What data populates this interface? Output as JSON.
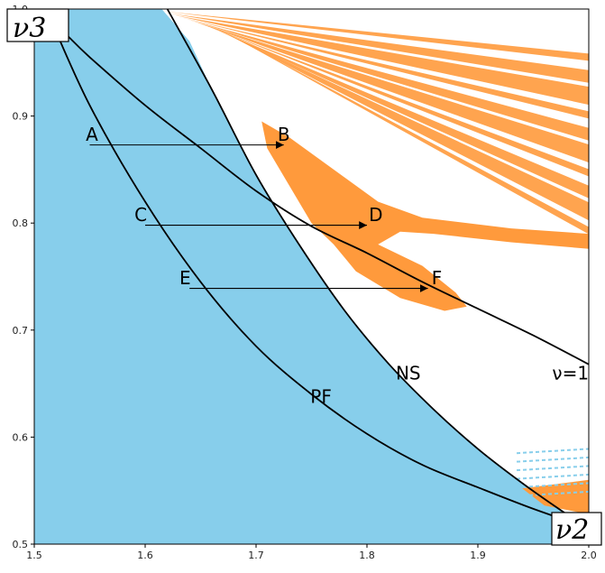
{
  "chart_data": {
    "type": "region-plot",
    "xlim": [
      1.5,
      2.0
    ],
    "ylim": [
      0.5,
      1.0
    ],
    "grid": false,
    "x_ticks": [
      1.5,
      1.6,
      1.7,
      1.8,
      1.9,
      2.0
    ],
    "y_ticks": [
      0.5,
      0.6,
      0.7,
      0.8,
      0.9,
      1.0
    ],
    "x_tick_labels": [
      "1.5",
      "1.6",
      "1.7",
      "1.8",
      "1.9",
      "2.0"
    ],
    "y_tick_labels": [
      "0.5",
      "0.6",
      "0.7",
      "0.8",
      "0.9",
      "1.0"
    ],
    "xlabel": "ν2",
    "ylabel": "ν3",
    "colors": {
      "stable_region": "#87ceeb",
      "chaotic_region": "#ff9a3c",
      "curves": "#000000",
      "frame": "#000000"
    },
    "curves": [
      {
        "label": "NS",
        "points": [
          [
            1.62,
            1.0
          ],
          [
            1.66,
            0.925
          ],
          [
            1.7,
            0.845
          ],
          [
            1.74,
            0.778
          ],
          [
            1.78,
            0.718
          ],
          [
            1.82,
            0.668
          ],
          [
            1.86,
            0.626
          ],
          [
            1.9,
            0.589
          ],
          [
            1.94,
            0.557
          ],
          [
            1.98,
            0.528
          ],
          [
            2.0,
            0.515
          ]
        ]
      },
      {
        "label": "PF",
        "points": [
          [
            1.515,
            0.99
          ],
          [
            1.55,
            0.91
          ],
          [
            1.6,
            0.82
          ],
          [
            1.65,
            0.745
          ],
          [
            1.7,
            0.685
          ],
          [
            1.75,
            0.64
          ],
          [
            1.8,
            0.603
          ],
          [
            1.85,
            0.574
          ],
          [
            1.9,
            0.553
          ],
          [
            1.95,
            0.533
          ],
          [
            2.0,
            0.515
          ]
        ]
      },
      {
        "label": "ν=1",
        "points": [
          [
            1.53,
            0.975
          ],
          [
            1.55,
            0.955
          ],
          [
            1.6,
            0.91
          ],
          [
            1.65,
            0.87
          ],
          [
            1.7,
            0.83
          ],
          [
            1.75,
            0.797
          ],
          [
            1.8,
            0.772
          ],
          [
            1.85,
            0.745
          ],
          [
            1.9,
            0.72
          ],
          [
            1.95,
            0.695
          ],
          [
            2.0,
            0.668
          ]
        ]
      }
    ],
    "label_positions": {
      "NS": [
        1.826,
        0.654
      ],
      "PF": [
        1.749,
        0.632
      ],
      "ν=1": [
        1.967,
        0.654
      ]
    },
    "arrows": [
      {
        "from": "A",
        "to": "B",
        "x_start": 1.55,
        "x_end": 1.725,
        "y": 0.873
      },
      {
        "from": "C",
        "to": "D",
        "x_start": 1.6,
        "x_end": 1.8,
        "y": 0.798
      },
      {
        "from": "E",
        "to": "F",
        "x_start": 1.64,
        "x_end": 1.855,
        "y": 0.739
      }
    ],
    "point_labels": [
      {
        "name": "A",
        "x": 1.552,
        "y": 0.877
      },
      {
        "name": "B",
        "x": 1.725,
        "y": 0.877
      },
      {
        "name": "C",
        "x": 1.596,
        "y": 0.802
      },
      {
        "name": "D",
        "x": 1.808,
        "y": 0.802
      },
      {
        "name": "E",
        "x": 1.636,
        "y": 0.743
      },
      {
        "name": "F",
        "x": 1.863,
        "y": 0.743
      }
    ],
    "stable_region_boundary": [
      [
        1.5,
        1.0
      ],
      [
        1.615,
        1.0
      ],
      [
        1.64,
        0.97
      ],
      [
        1.66,
        0.925
      ],
      [
        1.7,
        0.845
      ],
      [
        1.74,
        0.778
      ],
      [
        1.78,
        0.718
      ],
      [
        1.82,
        0.668
      ],
      [
        1.86,
        0.626
      ],
      [
        1.9,
        0.589
      ],
      [
        1.94,
        0.557
      ],
      [
        1.98,
        0.528
      ],
      [
        2.0,
        0.515
      ],
      [
        2.0,
        0.5
      ],
      [
        1.5,
        0.5
      ]
    ],
    "chaotic_region_main": [
      [
        1.705,
        0.895
      ],
      [
        1.73,
        0.88
      ],
      [
        1.77,
        0.85
      ],
      [
        1.81,
        0.82
      ],
      [
        1.85,
        0.805
      ],
      [
        1.93,
        0.795
      ],
      [
        2.0,
        0.79
      ],
      [
        2.0,
        0.776
      ],
      [
        1.93,
        0.782
      ],
      [
        1.86,
        0.79
      ],
      [
        1.83,
        0.792
      ],
      [
        1.81,
        0.78
      ],
      [
        1.85,
        0.76
      ],
      [
        1.88,
        0.735
      ],
      [
        1.89,
        0.722
      ],
      [
        1.87,
        0.718
      ],
      [
        1.83,
        0.73
      ],
      [
        1.79,
        0.755
      ],
      [
        1.77,
        0.78
      ],
      [
        1.75,
        0.8
      ],
      [
        1.73,
        0.835
      ],
      [
        1.71,
        0.87
      ]
    ]
  }
}
